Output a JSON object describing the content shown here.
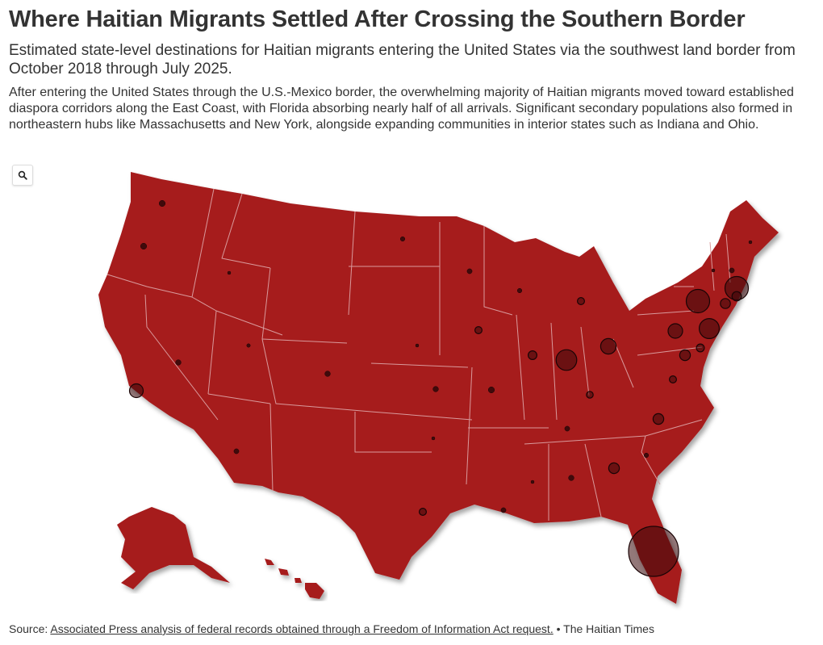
{
  "header": {
    "title": "Where Haitian Migrants Settled After Crossing the Southern Border",
    "subtitle": "Estimated state-level destinations for Haitian migrants entering the United States via the southwest land border from October 2018 through July 2025.",
    "description": "After entering the United States through the U.S.-Mexico border, the overwhelming majority of Haitian migrants moved toward established diaspora corridors along the East Coast, with Florida absorbing nearly half of all arrivals. Significant secondary populations also formed in northeastern hubs like Massachusetts and New York, alongside expanding communities in interior states such as Indiana and Ohio."
  },
  "controls": {
    "zoom_icon": "search-icon"
  },
  "map": {
    "colors": {
      "land": "#a61b1f",
      "border": "#d99a9c",
      "bubble": "#3a0a0b",
      "bubble_stroke": "#1a0405"
    },
    "bubbles": [
      {
        "state": "Florida",
        "size": 10
      },
      {
        "state": "New York",
        "size": 2.2
      },
      {
        "state": "Massachusetts",
        "size": 2.2
      },
      {
        "state": "Indiana",
        "size": 1.7
      },
      {
        "state": "New Jersey",
        "size": 1.6
      },
      {
        "state": "Ohio",
        "size": 0.95
      },
      {
        "state": "Pennsylvania",
        "size": 0.85
      },
      {
        "state": "California",
        "size": 0.75
      },
      {
        "state": "Georgia",
        "size": 0.45
      },
      {
        "state": "North Carolina",
        "size": 0.45
      },
      {
        "state": "Maryland",
        "size": 0.45
      },
      {
        "state": "Connecticut",
        "size": 0.4
      },
      {
        "state": "Rhode Island",
        "size": 0.35
      },
      {
        "state": "Illinois",
        "size": 0.3
      },
      {
        "state": "Delaware",
        "size": 0.25
      },
      {
        "state": "Iowa",
        "size": 0.2
      },
      {
        "state": "Michigan",
        "size": 0.2
      },
      {
        "state": "Virginia",
        "size": 0.2
      },
      {
        "state": "Texas",
        "size": 0.2
      },
      {
        "state": "Kentucky",
        "size": 0.18
      },
      {
        "state": "Oregon",
        "size": 0.15
      },
      {
        "state": "Washington",
        "size": 0.15
      },
      {
        "state": "Missouri",
        "size": 0.15
      },
      {
        "state": "Kansas",
        "size": 0.12
      },
      {
        "state": "Colorado",
        "size": 0.12
      },
      {
        "state": "Nevada",
        "size": 0.12
      },
      {
        "state": "Alabama",
        "size": 0.12
      },
      {
        "state": "Tennessee",
        "size": 0.1
      },
      {
        "state": "Arizona",
        "size": 0.1
      },
      {
        "state": "Louisiana",
        "size": 0.1
      },
      {
        "state": "Minnesota",
        "size": 0.1
      },
      {
        "state": "New Hampshire",
        "size": 0.1
      },
      {
        "state": "North Dakota",
        "size": 0.08
      },
      {
        "state": "Wisconsin",
        "size": 0.08
      },
      {
        "state": "South Carolina",
        "size": 0.08
      },
      {
        "state": "Utah",
        "size": 0.05
      },
      {
        "state": "Nebraska",
        "size": 0.04
      },
      {
        "state": "Oklahoma",
        "size": 0.04
      },
      {
        "state": "Idaho",
        "size": 0.04
      },
      {
        "state": "Vermont",
        "size": 0.04
      },
      {
        "state": "Mississippi",
        "size": 0.04
      },
      {
        "state": "Maine",
        "size": 0.04
      }
    ]
  },
  "footer": {
    "source_label": "Source:",
    "source_link": "Associated Press analysis of federal records obtained through a Freedom of Information Act request.",
    "credit": "• The Haitian Times"
  }
}
